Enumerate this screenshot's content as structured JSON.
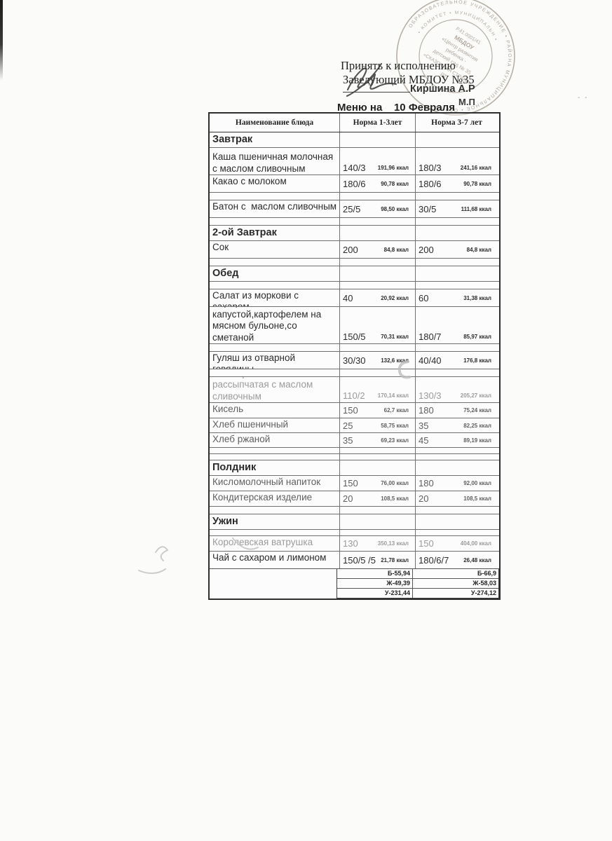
{
  "approval": {
    "line1": "Принять к исполнению",
    "line2": "Заведующий МБДОУ №35",
    "signatory": "Киршина А.Р",
    "seal_mark": "М.П"
  },
  "title": "Меню на    10 Февраля",
  "stamp": {
    "ring_outer": "ОБРАЗОВАТЕЛЬНОЕ УЧРЕЖДЕНИЕ • РАЙОНА МУНИЦИПАЛЬНОЕ • ОГРН •",
    "ring_inner": "• КОМИТЕТ • МУНИЦИПАЛЬН •",
    "center_lines": [
      "Р.41.0001/41",
      "МБДОУ",
      "«Центр развития",
      "ребенка -",
      "детский сад № 35",
      "«СКАЗОЧНАЯ СТРАНА»",
      "РТ"
    ]
  },
  "table": {
    "headers": [
      "Наименование блюда",
      "Норма 1-3лет",
      "Норма 3-7 лет"
    ],
    "rows": [
      {
        "type": "section",
        "name": "Завтрак",
        "h": 21
      },
      {
        "type": "dish",
        "name": "Каша пшеничная молочная с маслом сливочным",
        "n1": "140/3",
        "k1": "191,96 ккал",
        "n2": "180/3",
        "k2": "241,16 ккал",
        "h": 38,
        "valign": "bottom"
      },
      {
        "type": "dish",
        "name": "Какао с молоком",
        "n1": "180/6",
        "k1": "90,78 ккал",
        "n2": "180/6",
        "k2": "90,78 ккал",
        "h": 24
      },
      {
        "type": "spacer",
        "h": 10
      },
      {
        "type": "dish",
        "name": "Батон с  маслом сливочным",
        "n1": "25/5",
        "k1": "98,50 ккал",
        "n2": "30/5",
        "k2": "111,68 ккал",
        "h": 24
      },
      {
        "type": "spacer",
        "h": 10
      },
      {
        "type": "section",
        "name": "2-ой Завтрак",
        "h": 21
      },
      {
        "type": "dish",
        "name": "Сок",
        "n1": "200",
        "k1": "84,8 ккал",
        "n2": "200",
        "k2": "84,8 ккал",
        "h": 24
      },
      {
        "type": "spacer",
        "h": 10
      },
      {
        "type": "section",
        "name": "Обед",
        "h": 21
      },
      {
        "type": "spacer",
        "h": 10
      },
      {
        "type": "dish",
        "name": "Салат из моркови с сахаром",
        "n1": "40",
        "k1": "20,92 ккал",
        "n2": "60",
        "k2": "31,38 ккал",
        "h": 24
      },
      {
        "type": "dish",
        "name": "Борщ со свежей капустой,картофелем на мясном бульоне,со сметаной",
        "n1": "150/5",
        "k1": "70,31 ккал",
        "n2": "180/7",
        "k2": "85,97 ккал",
        "h": 52,
        "valign": "bottom"
      },
      {
        "type": "spacer",
        "h": 10
      },
      {
        "type": "dish",
        "name": "Гуляш из отварной говядины",
        "n1": "30/30",
        "k1": "132,6 ккал",
        "n2": "40/40",
        "k2": "176,8 ккал",
        "h": 24
      },
      {
        "type": "spacer",
        "h": 10
      },
      {
        "type": "dish",
        "name": "Каша гречневая рассыпчатая с маслом сливочным",
        "n1": "110/2",
        "k1": "170,14 ккал",
        "n2": "130/3",
        "k2": "205,27 ккал",
        "h": 36,
        "valign": "bottom",
        "faded": true
      },
      {
        "type": "dish",
        "name": "Кисель",
        "n1": "150",
        "k1": "62,7 ккал",
        "n2": "180",
        "k2": "75,24 ккал",
        "h": 21,
        "dim": true
      },
      {
        "type": "dish",
        "name": "Хлеб пшеничный",
        "n1": "25",
        "k1": "58,75 ккал",
        "n2": "35",
        "k2": "82,25 ккал",
        "h": 20,
        "dim": true
      },
      {
        "type": "dish",
        "name": "Хлеб ржаной",
        "n1": "35",
        "k1": "69,23 ккал",
        "n2": "45",
        "k2": "89,19 ккал",
        "h": 20,
        "dim": true
      },
      {
        "type": "spacer",
        "h": 8
      },
      {
        "type": "spacer",
        "h": 8
      },
      {
        "type": "section",
        "name": "Полдник",
        "h": 21
      },
      {
        "type": "dish",
        "name": "Кисломолочный напиток",
        "n1": "150",
        "k1": "76,00 ккал",
        "n2": "180",
        "k2": "92,00 ккал",
        "h": 21,
        "dim": true
      },
      {
        "type": "dish",
        "name": "Кондитерская изделие",
        "n1": "20",
        "k1": "108,5 ккал",
        "n2": "20",
        "k2": "108,5 ккал",
        "h": 21,
        "dim": true
      },
      {
        "type": "spacer",
        "h": 10
      },
      {
        "type": "section",
        "name": "Ужин",
        "h": 21
      },
      {
        "type": "spacer",
        "h": 8
      },
      {
        "type": "dish",
        "name": "Королевская ватрушка",
        "n1": "130",
        "k1": "350,13 ккал",
        "n2": "150",
        "k2": "404,00 ккал",
        "h": 21,
        "faded": true
      },
      {
        "type": "dish",
        "name": "Чай с сахаром и лимоном",
        "n1": "150/5 /5",
        "k1": "21,78 ккал",
        "n2": "180/6/7",
        "k2": "26,48 ккал",
        "h": 24
      }
    ]
  },
  "totals": {
    "col1": [
      "Б-55,94",
      "Ж-49,39",
      "У-231,44"
    ],
    "col2": [
      "Б-66,9",
      "Ж-58,03",
      "У-274,12"
    ]
  }
}
